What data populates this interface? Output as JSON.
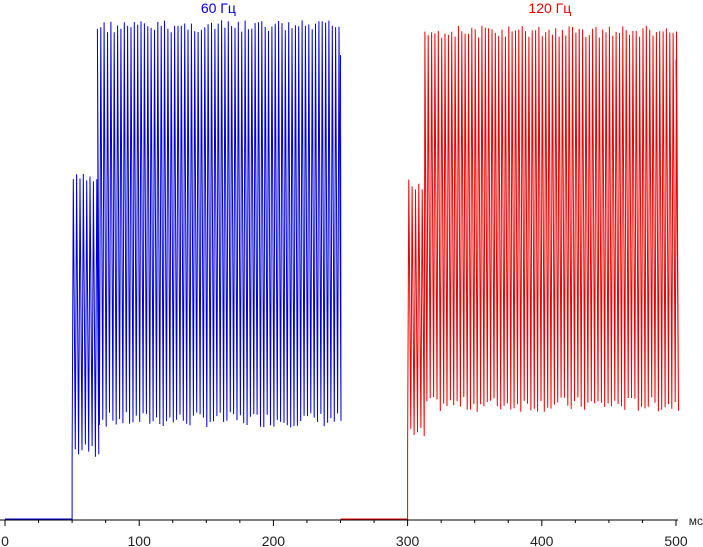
{
  "chart_data": {
    "type": "line",
    "x_unit": "мс",
    "xlim": [
      0,
      500
    ],
    "x_ticks": [
      0,
      100,
      200,
      300,
      400,
      500
    ],
    "x_tick_labels": [
      "0",
      "100",
      "200",
      "300",
      "400",
      "500"
    ],
    "ylim": [
      0,
      1
    ],
    "grid": false,
    "series": [
      {
        "name": "60 Гц",
        "color": "#0000dd",
        "baseline": {
          "x_start": 0,
          "x_end": 50,
          "y": 0
        },
        "step_on_ms": 50,
        "phase1": {
          "x_start": 50,
          "x_end": 68,
          "peak": 0.68,
          "trough": 0.12
        },
        "phase2": {
          "x_start": 68,
          "x_end": 250,
          "peak": 0.98,
          "trough": 0.18
        },
        "ripple_period_ms": 2.5
      },
      {
        "name": "120 Гц",
        "color": "#ee0000",
        "baseline": {
          "x_start": 250,
          "x_end": 300,
          "y": 0
        },
        "step_on_ms": 300,
        "phase1": {
          "x_start": 300,
          "x_end": 312,
          "peak": 0.67,
          "trough": 0.15
        },
        "phase2": {
          "x_start": 312,
          "x_end": 500,
          "peak": 0.97,
          "trough": 0.21
        },
        "ripple_period_ms": 2.5
      }
    ]
  }
}
